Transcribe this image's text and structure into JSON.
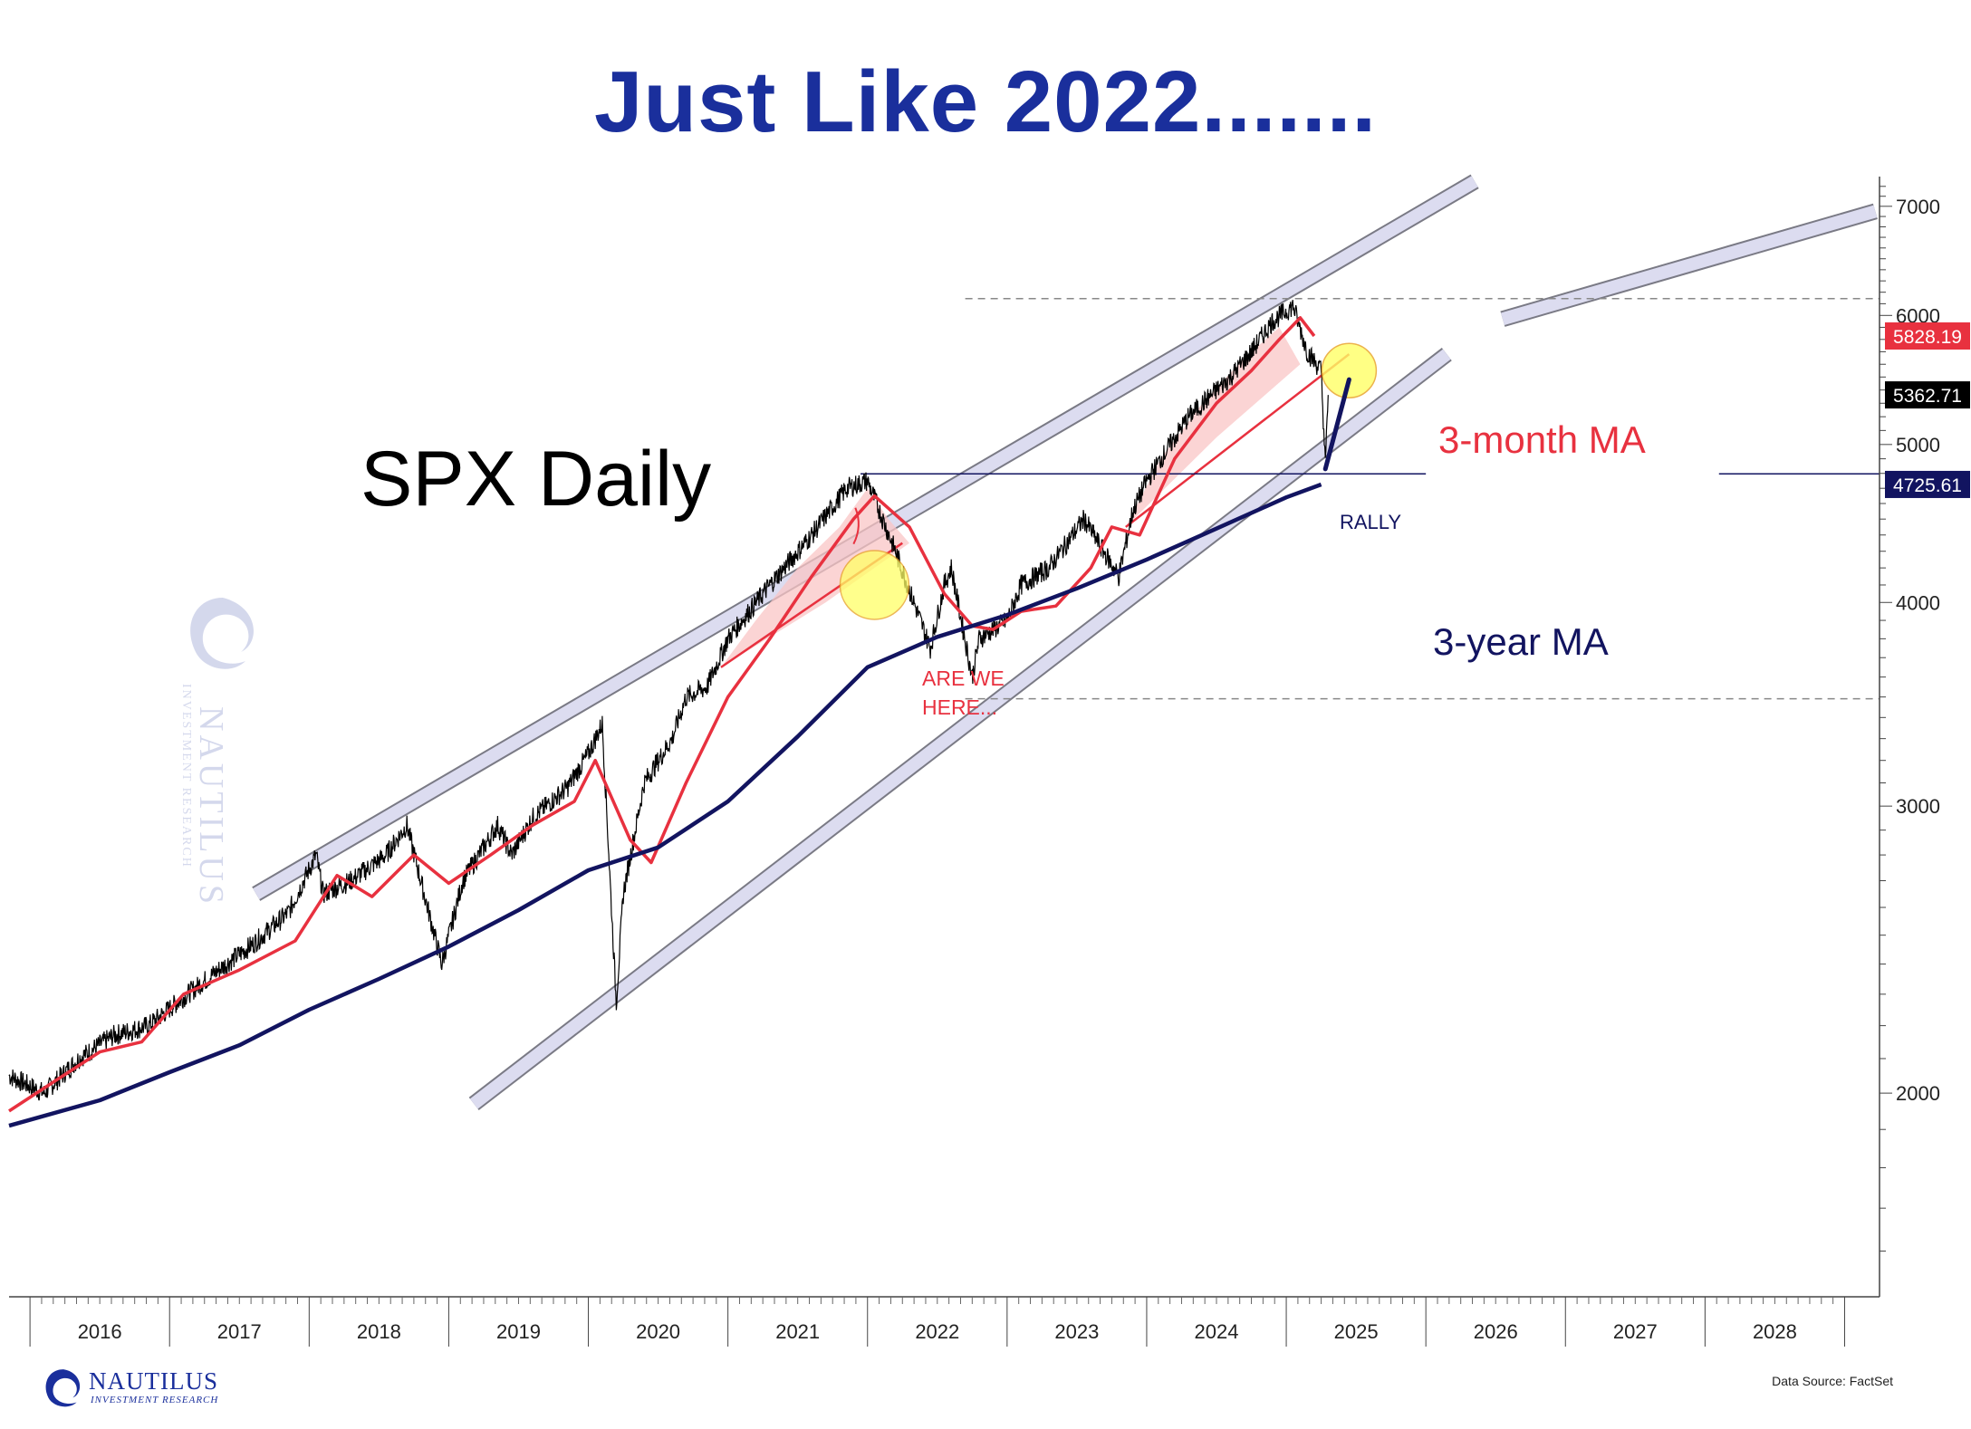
{
  "title": "Just Like 2022.......",
  "chart_data": {
    "type": "line",
    "title": "Just Like 2022.......",
    "subtitle": "SPX Daily",
    "y_scale": "log",
    "ylim": [
      1500,
      7300
    ],
    "xlim": [
      2015.85,
      2029.25
    ],
    "y_ticks": [
      2000,
      3000,
      4000,
      5000,
      6000,
      7000
    ],
    "x_tick_labels": [
      "2016",
      "2017",
      "2018",
      "2019",
      "2020",
      "2021",
      "2022",
      "2023",
      "2024",
      "2025",
      "2026",
      "2027",
      "2028"
    ],
    "grid": false,
    "series": [
      {
        "name": "SPX Daily",
        "color": "#000000",
        "x": [
          2015.85,
          2016.1,
          2016.35,
          2016.6,
          2016.85,
          2017.1,
          2017.35,
          2017.6,
          2017.85,
          2018.05,
          2018.1,
          2018.3,
          2018.55,
          2018.7,
          2018.95,
          2019.1,
          2019.35,
          2019.45,
          2019.6,
          2019.85,
          2020.0,
          2020.1,
          2020.2,
          2020.25,
          2020.4,
          2020.6,
          2020.7,
          2020.85,
          2021.0,
          2021.3,
          2021.6,
          2021.85,
          2022.0,
          2022.2,
          2022.45,
          2022.55,
          2022.6,
          2022.75,
          2022.8,
          2023.0,
          2023.1,
          2023.3,
          2023.55,
          2023.8,
          2023.9,
          2024.0,
          2024.3,
          2024.6,
          2024.75,
          2024.9,
          2025.05,
          2025.15,
          2025.25,
          2025.28,
          2025.3
        ],
        "y": [
          2050,
          2000,
          2100,
          2170,
          2200,
          2290,
          2380,
          2470,
          2580,
          2800,
          2650,
          2700,
          2800,
          2920,
          2400,
          2700,
          2920,
          2800,
          2950,
          3080,
          3230,
          3370,
          2270,
          2650,
          3100,
          3300,
          3500,
          3550,
          3800,
          4100,
          4400,
          4700,
          4750,
          4300,
          3750,
          4100,
          4200,
          3600,
          3800,
          3900,
          4100,
          4200,
          4500,
          4150,
          4550,
          4750,
          5200,
          5500,
          5700,
          5950,
          6080,
          5700,
          5550,
          4850,
          5362.71
        ]
      },
      {
        "name": "3-month MA",
        "color": "#e8313f",
        "x": [
          2015.85,
          2016.2,
          2016.5,
          2016.8,
          2017.1,
          2017.5,
          2017.9,
          2018.2,
          2018.45,
          2018.75,
          2019.0,
          2019.3,
          2019.6,
          2019.9,
          2020.05,
          2020.3,
          2020.45,
          2020.7,
          2021.0,
          2021.3,
          2021.6,
          2021.9,
          2022.05,
          2022.3,
          2022.55,
          2022.75,
          2022.9,
          2023.1,
          2023.35,
          2023.6,
          2023.75,
          2023.95,
          2024.2,
          2024.5,
          2024.75,
          2024.95,
          2025.1,
          2025.2
        ],
        "y": [
          1950,
          2040,
          2120,
          2150,
          2300,
          2380,
          2480,
          2720,
          2640,
          2800,
          2690,
          2800,
          2920,
          3020,
          3200,
          2860,
          2770,
          3100,
          3500,
          3800,
          4150,
          4500,
          4650,
          4450,
          4050,
          3870,
          3850,
          3950,
          3980,
          4200,
          4450,
          4400,
          4900,
          5300,
          5550,
          5800,
          5980,
          5828.19
        ]
      },
      {
        "name": "3-year MA",
        "color": "#121460",
        "x": [
          2015.85,
          2016.5,
          2017.0,
          2017.5,
          2018.0,
          2018.5,
          2019.0,
          2019.5,
          2020.0,
          2020.5,
          2021.0,
          2021.5,
          2022.0,
          2022.5,
          2023.0,
          2023.5,
          2024.0,
          2024.5,
          2025.0,
          2025.25
        ],
        "y": [
          1910,
          1980,
          2060,
          2140,
          2250,
          2350,
          2460,
          2590,
          2740,
          2830,
          3020,
          3310,
          3650,
          3810,
          3930,
          4080,
          4250,
          4440,
          4640,
          4725.61
        ]
      }
    ],
    "last_value_labels": [
      {
        "label": "5828.19",
        "value": 5828.19,
        "color": "#e8313f"
      },
      {
        "label": "5362.71",
        "value": 5362.71,
        "color": "#000000"
      },
      {
        "label": "4725.61",
        "value": 4725.61,
        "color": "#121460"
      }
    ],
    "annotations": {
      "spx_label": "SPX Daily",
      "ma_3m": "3-month MA",
      "ma_3y": "3-year MA",
      "are_we_here_line1": "ARE WE",
      "are_we_here_line2": "HERE...",
      "rally": "RALLY"
    },
    "reference_lines": {
      "upper_dashed": 6144,
      "lower_dashed": 3491,
      "horizontal_solid": 4797
    }
  },
  "footer": {
    "source": "Data Source: FactSet",
    "logo_name": "NAUTILUS",
    "logo_sub": "INVESTMENT RESEARCH"
  },
  "colors": {
    "title": "#1a2f9c",
    "ma_3m": "#e8313f",
    "ma_3y": "#121460",
    "channel": "#dcdcf0",
    "highlight": "#ffff66",
    "shade": "#f9c6c6"
  }
}
